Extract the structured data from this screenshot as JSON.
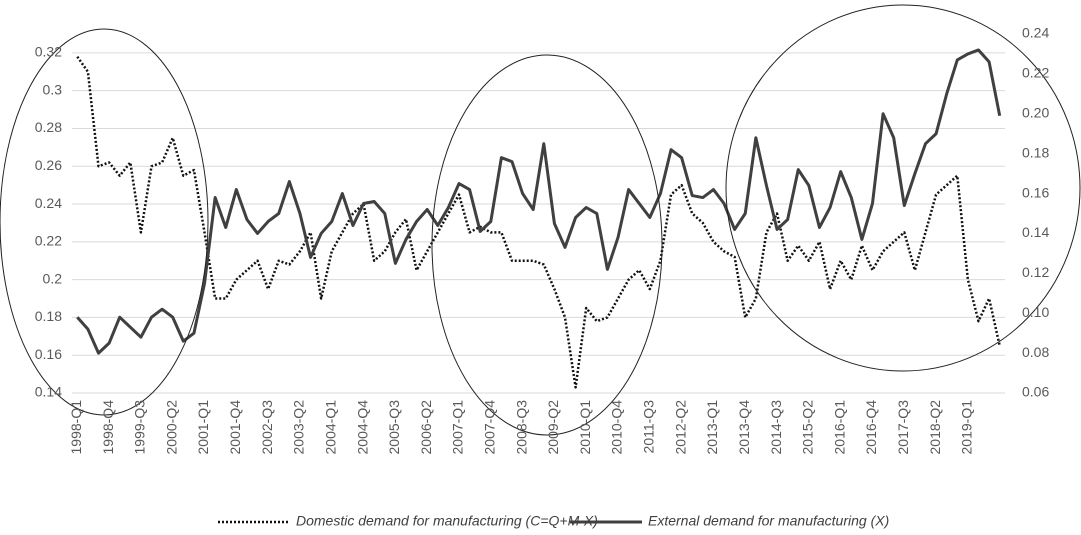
{
  "chart_data": {
    "type": "line",
    "categories": [
      "1998-Q1",
      null,
      null,
      "1998-Q4",
      null,
      null,
      "1999-Q3",
      null,
      null,
      "2000-Q2",
      null,
      null,
      "2001-Q1",
      null,
      null,
      "2001-Q4",
      null,
      null,
      "2002-Q3",
      null,
      null,
      "2003-Q2",
      null,
      null,
      "2004-Q1",
      null,
      null,
      "2004-Q4",
      null,
      null,
      "2005-Q3",
      null,
      null,
      "2006-Q2",
      null,
      null,
      "2007-Q1",
      null,
      null,
      "2007-Q4",
      null,
      null,
      "2008-Q3",
      null,
      null,
      "2009-Q2",
      null,
      null,
      "2010-Q1",
      null,
      null,
      "2010-Q4",
      null,
      null,
      "2011-Q3",
      null,
      null,
      "2012-Q2",
      null,
      null,
      "2013-Q1",
      null,
      null,
      "2013-Q4",
      null,
      null,
      "2014-Q3",
      null,
      null,
      "2015-Q2",
      null,
      null,
      "2016-Q1",
      null,
      null,
      "2016-Q4",
      null,
      null,
      "2017-Q3",
      null,
      null,
      "2018-Q2",
      null,
      null,
      "2019-Q1",
      null,
      null,
      null
    ],
    "series": [
      {
        "name": "Domestic demand for manufacturing (C=Q+M-X)",
        "color": "#111111",
        "style": "dotted",
        "values": [
          0.318,
          0.31,
          0.26,
          0.262,
          0.255,
          0.262,
          0.225,
          0.26,
          0.262,
          0.275,
          0.255,
          0.258,
          0.225,
          0.19,
          0.19,
          0.2,
          0.205,
          0.21,
          0.195,
          0.21,
          0.208,
          0.215,
          0.225,
          0.19,
          0.215,
          0.225,
          0.235,
          0.24,
          0.21,
          0.215,
          0.225,
          0.232,
          0.205,
          0.215,
          0.225,
          0.235,
          0.245,
          0.225,
          0.228,
          0.225,
          0.225,
          0.21,
          0.21,
          0.21,
          0.208,
          0.195,
          0.18,
          0.143,
          0.185,
          0.178,
          0.18,
          0.19,
          0.2,
          0.205,
          0.195,
          0.21,
          0.245,
          0.25,
          0.235,
          0.23,
          0.22,
          0.215,
          0.212,
          0.18,
          0.19,
          0.225,
          0.235,
          0.21,
          0.218,
          0.21,
          0.22,
          0.195,
          0.21,
          0.2,
          0.218,
          0.205,
          0.215,
          0.22,
          0.225,
          0.205,
          0.225,
          0.245,
          0.25,
          0.255,
          0.2,
          0.178,
          0.19,
          0.165
        ]
      },
      {
        "name": "External demand for manufacturing (X)",
        "color": "#404040",
        "style": "solid",
        "axis": "y2",
        "values": [
          0.098,
          0.092,
          0.08,
          0.085,
          0.098,
          0.093,
          0.088,
          0.098,
          0.102,
          0.098,
          0.086,
          0.09,
          0.115,
          0.158,
          0.143,
          0.162,
          0.147,
          0.14,
          0.146,
          0.15,
          0.166,
          0.15,
          0.128,
          0.14,
          0.146,
          0.16,
          0.144,
          0.155,
          0.156,
          0.15,
          0.125,
          0.137,
          0.146,
          0.152,
          0.144,
          0.153,
          0.165,
          0.162,
          0.141,
          0.146,
          0.178,
          0.176,
          0.16,
          0.152,
          0.185,
          0.145,
          0.133,
          0.148,
          0.153,
          0.15,
          0.122,
          0.138,
          0.162,
          0.155,
          0.148,
          0.16,
          0.182,
          0.178,
          0.159,
          0.158,
          0.162,
          0.155,
          0.142,
          0.15,
          0.188,
          0.164,
          0.142,
          0.147,
          0.172,
          0.164,
          0.143,
          0.153,
          0.171,
          0.158,
          0.137,
          0.155,
          0.2,
          0.188,
          0.154,
          0.17,
          0.185,
          0.19,
          0.21,
          0.227,
          0.23,
          0.232,
          0.226,
          0.199
        ]
      }
    ],
    "ylim": [
      0.14,
      0.33
    ],
    "yticks": [
      0.14,
      0.16,
      0.18,
      0.2,
      0.22,
      0.24,
      0.26,
      0.28,
      0.3,
      0.32
    ],
    "y2lim": [
      0.06,
      0.24
    ],
    "y2ticks": [
      0.06,
      0.08,
      {
        "value": 0.1,
        "label": "0.10"
      },
      0.12,
      0.14,
      0.16,
      0.18,
      {
        "value": 0.2,
        "label": "0.20"
      },
      0.22,
      0.24
    ],
    "grid": true,
    "legend": "bottom"
  }
}
